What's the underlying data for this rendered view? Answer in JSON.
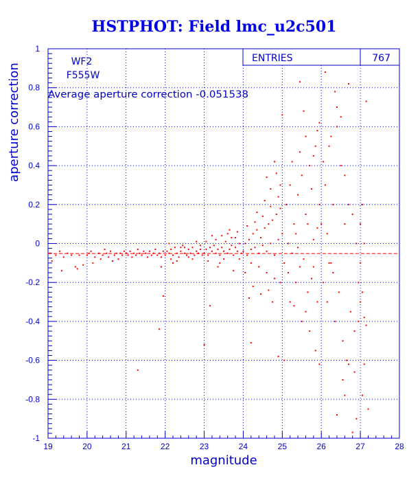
{
  "chart_data": {
    "type": "scatter",
    "title": "HSTPHOT: Field lmc_u2c501",
    "xlabel": "magnitude",
    "ylabel": "aperture correction",
    "xlim": [
      19,
      28
    ],
    "ylim": [
      -1,
      1
    ],
    "x_ticks": [
      19,
      20,
      21,
      22,
      23,
      24,
      25,
      26,
      27,
      28
    ],
    "y_ticks": [
      -1,
      -0.8,
      -0.6,
      -0.4,
      -0.2,
      0,
      0.2,
      0.4,
      0.6,
      0.8,
      1
    ],
    "y_tick_labels": [
      "-1",
      "-0.8",
      "-0.6",
      "-0.4",
      "-0.2",
      "0",
      "0.2",
      "0.4",
      "0.6",
      "0.8",
      "1"
    ],
    "grid": true,
    "annotations": {
      "chip": "WF2",
      "filter": "F555W",
      "average_text": "Average aperture correction -0.051538"
    },
    "reference_line": {
      "y": -0.051538,
      "style": "dashed"
    },
    "stats_box": {
      "label": "ENTRIES",
      "value": "767"
    },
    "point_color": "#ff0000",
    "axis_color": "#0000cc",
    "points": [
      [
        19.05,
        -0.05
      ],
      [
        19.1,
        -0.09
      ],
      [
        19.2,
        -0.06
      ],
      [
        19.3,
        -0.04
      ],
      [
        19.4,
        -0.07
      ],
      [
        19.5,
        -0.05
      ],
      [
        19.6,
        -0.06
      ],
      [
        19.7,
        -0.12
      ],
      [
        19.8,
        -0.06
      ],
      [
        19.9,
        -0.11
      ],
      [
        19.35,
        -0.14
      ],
      [
        19.75,
        -0.13
      ],
      [
        20.0,
        -0.06
      ],
      [
        20.05,
        -0.05
      ],
      [
        20.1,
        -0.04
      ],
      [
        20.2,
        -0.07
      ],
      [
        20.3,
        -0.05
      ],
      [
        20.35,
        -0.08
      ],
      [
        20.4,
        -0.06
      ],
      [
        20.45,
        -0.03
      ],
      [
        20.5,
        -0.05
      ],
      [
        20.55,
        -0.07
      ],
      [
        20.6,
        -0.04
      ],
      [
        20.7,
        -0.06
      ],
      [
        20.75,
        -0.05
      ],
      [
        20.8,
        -0.08
      ],
      [
        20.85,
        -0.05
      ],
      [
        20.9,
        -0.06
      ],
      [
        20.95,
        -0.04
      ],
      [
        20.15,
        -0.1
      ],
      [
        20.65,
        -0.09
      ],
      [
        21.0,
        -0.05
      ],
      [
        21.05,
        -0.06
      ],
      [
        21.1,
        -0.04
      ],
      [
        21.15,
        -0.07
      ],
      [
        21.2,
        -0.05
      ],
      [
        21.25,
        -0.06
      ],
      [
        21.3,
        -0.03
      ],
      [
        21.35,
        -0.05
      ],
      [
        21.4,
        -0.06
      ],
      [
        21.45,
        -0.04
      ],
      [
        21.5,
        -0.05
      ],
      [
        21.55,
        -0.07
      ],
      [
        21.6,
        -0.04
      ],
      [
        21.65,
        -0.06
      ],
      [
        21.7,
        -0.05
      ],
      [
        21.75,
        -0.03
      ],
      [
        21.8,
        -0.06
      ],
      [
        21.85,
        -0.05
      ],
      [
        21.9,
        -0.07
      ],
      [
        21.95,
        -0.04
      ],
      [
        21.3,
        -0.65
      ],
      [
        21.85,
        -0.44
      ],
      [
        21.95,
        -0.27
      ],
      [
        21.9,
        -0.12
      ],
      [
        22.0,
        -0.06
      ],
      [
        22.05,
        -0.04
      ],
      [
        22.1,
        -0.05
      ],
      [
        22.15,
        -0.03
      ],
      [
        22.2,
        -0.06
      ],
      [
        22.25,
        -0.02
      ],
      [
        22.3,
        -0.05
      ],
      [
        22.35,
        -0.07
      ],
      [
        22.4,
        -0.04
      ],
      [
        22.45,
        -0.01
      ],
      [
        22.5,
        -0.05
      ],
      [
        22.55,
        -0.06
      ],
      [
        22.6,
        -0.03
      ],
      [
        22.65,
        -0.05
      ],
      [
        22.7,
        -0.02
      ],
      [
        22.75,
        -0.06
      ],
      [
        22.8,
        -0.04
      ],
      [
        22.85,
        -0.05
      ],
      [
        22.9,
        -0.03
      ],
      [
        22.95,
        -0.06
      ],
      [
        22.1,
        0.0
      ],
      [
        22.3,
        -0.09
      ],
      [
        22.5,
        -0.02
      ],
      [
        22.7,
        -0.08
      ],
      [
        22.9,
        -0.01
      ],
      [
        22.2,
        -0.1
      ],
      [
        22.6,
        -0.07
      ],
      [
        22.8,
        0.01
      ],
      [
        22.4,
        -0.02
      ],
      [
        22.15,
        -0.08
      ],
      [
        23.0,
        -0.05
      ],
      [
        23.05,
        -0.03
      ],
      [
        23.1,
        -0.06
      ],
      [
        23.15,
        -0.02
      ],
      [
        23.2,
        -0.04
      ],
      [
        23.25,
        -0.01
      ],
      [
        23.3,
        -0.05
      ],
      [
        23.35,
        -0.03
      ],
      [
        23.4,
        -0.06
      ],
      [
        23.45,
        -0.02
      ],
      [
        23.5,
        -0.04
      ],
      [
        23.55,
        0.01
      ],
      [
        23.6,
        -0.05
      ],
      [
        23.65,
        -0.03
      ],
      [
        23.7,
        -0.01
      ],
      [
        23.75,
        -0.06
      ],
      [
        23.8,
        -0.02
      ],
      [
        23.85,
        -0.04
      ],
      [
        23.9,
        0.0
      ],
      [
        23.95,
        -0.05
      ],
      [
        23.1,
        -0.09
      ],
      [
        23.3,
        0.02
      ],
      [
        23.5,
        -0.08
      ],
      [
        23.7,
        0.03
      ],
      [
        23.9,
        -0.08
      ],
      [
        23.2,
        0.04
      ],
      [
        23.6,
        0.05
      ],
      [
        23.8,
        0.03
      ],
      [
        23.4,
        -0.1
      ],
      [
        23.15,
        -0.32
      ],
      [
        23.0,
        -0.52
      ],
      [
        23.35,
        -0.12
      ],
      [
        23.75,
        -0.14
      ],
      [
        23.05,
        0.01
      ],
      [
        23.45,
        0.04
      ],
      [
        23.65,
        0.07
      ],
      [
        23.85,
        0.06
      ],
      [
        24.0,
        -0.04
      ],
      [
        24.05,
        0.0
      ],
      [
        24.1,
        -0.06
      ],
      [
        24.15,
        0.02
      ],
      [
        24.2,
        -0.03
      ],
      [
        24.25,
        0.05
      ],
      [
        24.3,
        -0.02
      ],
      [
        24.35,
        0.07
      ],
      [
        24.4,
        -0.05
      ],
      [
        24.45,
        0.03
      ],
      [
        24.5,
        -0.01
      ],
      [
        24.55,
        0.08
      ],
      [
        24.6,
        -0.04
      ],
      [
        24.65,
        0.1
      ],
      [
        24.7,
        0.0
      ],
      [
        24.75,
        0.12
      ],
      [
        24.8,
        -0.06
      ],
      [
        24.85,
        0.15
      ],
      [
        24.9,
        0.02
      ],
      [
        24.95,
        0.18
      ],
      [
        24.1,
        0.09
      ],
      [
        24.3,
        0.11
      ],
      [
        24.5,
        0.14
      ],
      [
        24.7,
        0.19
      ],
      [
        24.9,
        0.24
      ],
      [
        24.2,
        -0.1
      ],
      [
        24.4,
        -0.12
      ],
      [
        24.6,
        -0.15
      ],
      [
        24.8,
        -0.18
      ],
      [
        24.95,
        -0.2
      ],
      [
        24.05,
        -0.15
      ],
      [
        24.25,
        -0.22
      ],
      [
        24.15,
        -0.28
      ],
      [
        24.45,
        -0.26
      ],
      [
        24.6,
        0.34
      ],
      [
        24.7,
        0.28
      ],
      [
        24.8,
        0.42
      ],
      [
        24.85,
        0.36
      ],
      [
        24.95,
        0.3
      ],
      [
        24.65,
        -0.24
      ],
      [
        24.75,
        -0.3
      ],
      [
        24.9,
        -0.58
      ],
      [
        24.2,
        -0.51
      ],
      [
        24.55,
        0.22
      ],
      [
        24.35,
        0.16
      ],
      [
        25.0,
        0.05
      ],
      [
        25.05,
        -0.1
      ],
      [
        25.1,
        0.2
      ],
      [
        25.15,
        -0.15
      ],
      [
        25.2,
        0.3
      ],
      [
        25.25,
        -0.05
      ],
      [
        25.3,
        0.1
      ],
      [
        25.35,
        -0.2
      ],
      [
        25.4,
        0.25
      ],
      [
        25.45,
        -0.12
      ],
      [
        25.5,
        0.35
      ],
      [
        25.55,
        -0.08
      ],
      [
        25.6,
        0.15
      ],
      [
        25.65,
        -0.25
      ],
      [
        25.7,
        0.4
      ],
      [
        25.75,
        -0.18
      ],
      [
        25.8,
        0.02
      ],
      [
        25.85,
        0.5
      ],
      [
        25.9,
        -0.3
      ],
      [
        25.95,
        0.2
      ],
      [
        25.0,
        0.66
      ],
      [
        25.45,
        0.83
      ],
      [
        25.55,
        0.68
      ],
      [
        25.45,
        0.47
      ],
      [
        25.6,
        0.55
      ],
      [
        25.75,
        0.28
      ],
      [
        25.8,
        0.45
      ],
      [
        25.9,
        0.58
      ],
      [
        25.95,
        0.62
      ],
      [
        25.3,
        -0.32
      ],
      [
        25.5,
        -0.4
      ],
      [
        25.7,
        -0.45
      ],
      [
        25.85,
        -0.55
      ],
      [
        25.95,
        -0.62
      ],
      [
        25.05,
        -0.6
      ],
      [
        25.25,
        0.42
      ],
      [
        25.35,
        0.05
      ],
      [
        25.65,
        0.1
      ],
      [
        25.15,
        0.0
      ],
      [
        25.4,
        -0.02
      ],
      [
        25.2,
        -0.3
      ],
      [
        25.6,
        -0.35
      ],
      [
        25.9,
        0.08
      ],
      [
        25.8,
        -0.12
      ],
      [
        25.7,
        0.95
      ],
      [
        26.0,
        0.1
      ],
      [
        26.05,
        -0.2
      ],
      [
        26.1,
        0.3
      ],
      [
        26.15,
        -0.3
      ],
      [
        26.2,
        0.5
      ],
      [
        26.25,
        -0.1
      ],
      [
        26.3,
        0.2
      ],
      [
        26.35,
        -0.4
      ],
      [
        26.4,
        0.6
      ],
      [
        26.45,
        -0.25
      ],
      [
        26.5,
        0.4
      ],
      [
        26.55,
        -0.5
      ],
      [
        26.6,
        0.35
      ],
      [
        26.65,
        -0.6
      ],
      [
        26.7,
        0.2
      ],
      [
        26.75,
        -0.35
      ],
      [
        26.8,
        0.15
      ],
      [
        26.85,
        -0.45
      ],
      [
        26.9,
        0.0
      ],
      [
        26.95,
        -0.2
      ],
      [
        26.1,
        0.88
      ],
      [
        26.45,
        0.94
      ],
      [
        26.7,
        0.82
      ],
      [
        26.35,
        0.78
      ],
      [
        26.4,
        0.7
      ],
      [
        26.25,
        0.55
      ],
      [
        26.5,
        0.65
      ],
      [
        26.6,
        -0.78
      ],
      [
        26.4,
        -0.88
      ],
      [
        26.8,
        -0.97
      ],
      [
        26.7,
        -0.62
      ],
      [
        26.55,
        -0.7
      ],
      [
        26.85,
        -0.66
      ],
      [
        26.95,
        -0.4
      ],
      [
        26.3,
        -0.15
      ],
      [
        26.2,
        -0.1
      ],
      [
        26.15,
        0.05
      ],
      [
        26.05,
        0.42
      ],
      [
        26.9,
        -0.9
      ],
      [
        26.6,
        0.1
      ],
      [
        27.0,
        -0.1
      ],
      [
        27.05,
        -0.25
      ],
      [
        27.1,
        -0.38
      ],
      [
        27.15,
        -0.42
      ],
      [
        27.0,
        0.1
      ],
      [
        27.05,
        0.2
      ],
      [
        27.1,
        -0.62
      ],
      [
        27.15,
        0.73
      ],
      [
        27.2,
        -0.85
      ],
      [
        27.05,
        -0.78
      ],
      [
        27.0,
        -0.3
      ],
      [
        27.1,
        0.0
      ]
    ]
  }
}
